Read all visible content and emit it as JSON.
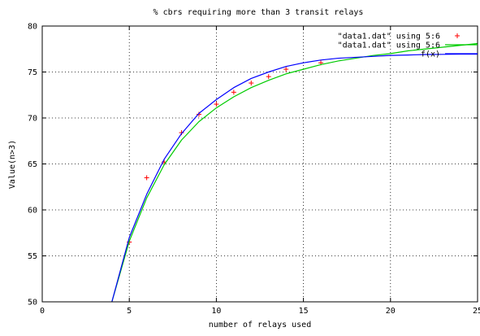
{
  "chart_data": {
    "type": "line",
    "title": "% cbrs requiring more than 3 transit relays",
    "xlabel": "number of relays used",
    "ylabel": "Value(n>3)",
    "xlim": [
      0,
      25
    ],
    "ylim": [
      50,
      80
    ],
    "x_ticks": [
      0,
      5,
      10,
      15,
      20,
      25
    ],
    "y_ticks": [
      50,
      55,
      60,
      65,
      70,
      75,
      80
    ],
    "x_tick_labels": [
      "0",
      "5",
      "10",
      "15",
      "20",
      "25"
    ],
    "y_tick_labels": [
      "50",
      "55",
      "60",
      "65",
      "70",
      "75",
      "80"
    ],
    "grid": true,
    "legend_position": "top-right",
    "series": [
      {
        "name": "\"data1.dat\" using 5:6",
        "style": "points",
        "color": "#ff0000",
        "x": [
          5,
          6,
          7,
          8,
          9,
          10,
          11,
          12,
          13,
          14,
          16
        ],
        "y": [
          56.5,
          63.5,
          65.2,
          68.4,
          70.4,
          71.5,
          72.8,
          73.8,
          74.5,
          75.3,
          76.0
        ]
      },
      {
        "name": "\"data1.dat\" using 5:6",
        "style": "line",
        "color": "#00cc00",
        "x": [
          4,
          5,
          6,
          7,
          8,
          9,
          10,
          11,
          12,
          13,
          14,
          15,
          16,
          17,
          18,
          19,
          20,
          21,
          22,
          23,
          24,
          25
        ],
        "y": [
          50.0,
          56.6,
          61.3,
          64.9,
          67.6,
          69.6,
          71.1,
          72.3,
          73.3,
          74.1,
          74.8,
          75.3,
          75.8,
          76.2,
          76.5,
          76.8,
          77.0,
          77.3,
          77.5,
          77.7,
          77.9,
          78.1
        ]
      },
      {
        "name": "f(x)",
        "style": "line",
        "color": "#0000ff",
        "x": [
          4,
          5,
          6,
          7,
          8,
          9,
          10,
          11,
          12,
          13,
          14,
          15,
          16,
          17,
          18,
          19,
          20,
          21,
          22,
          23,
          24,
          25
        ],
        "y": [
          50.0,
          57.0,
          61.7,
          65.5,
          68.3,
          70.5,
          72.0,
          73.3,
          74.3,
          75.0,
          75.6,
          76.0,
          76.3,
          76.5,
          76.6,
          76.7,
          76.8,
          76.85,
          76.9,
          76.92,
          76.94,
          76.95
        ]
      }
    ]
  }
}
